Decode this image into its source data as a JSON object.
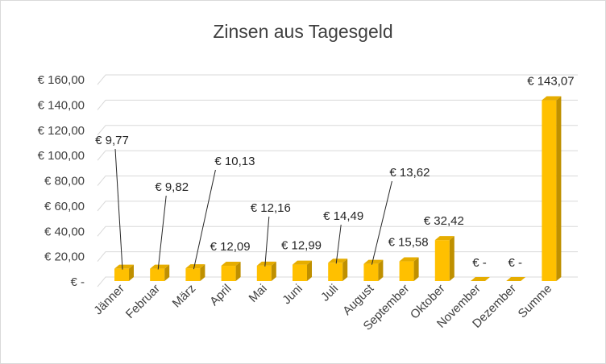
{
  "chart_data": {
    "type": "bar",
    "title": "Zinsen aus Tagesgeld",
    "xlabel": "",
    "ylabel": "",
    "categories": [
      "Jänner",
      "Februar",
      "März",
      "April",
      "Mai",
      "Juni",
      "Juli",
      "August",
      "September",
      "Oktober",
      "November",
      "Dezember",
      "Summe"
    ],
    "values": [
      9.77,
      9.82,
      10.13,
      12.09,
      12.16,
      12.99,
      14.49,
      13.62,
      15.58,
      32.42,
      0,
      0,
      143.07
    ],
    "data_labels": [
      "€ 9,77",
      "€ 9,82",
      "€ 10,13",
      "€ 12,09",
      "€ 12,16",
      "€ 12,99",
      "€ 14,49",
      "€ 13,62",
      "€ 15,58",
      "€ 32,42",
      "€ -",
      "€ -",
      "€ 143,07"
    ],
    "y_ticks": [
      0,
      20,
      40,
      60,
      80,
      100,
      120,
      140,
      160
    ],
    "y_tick_labels": [
      "€ -",
      "€ 20,00",
      "€ 40,00",
      "€ 60,00",
      "€ 80,00",
      "€ 100,00",
      "€ 120,00",
      "€ 140,00",
      "€ 160,00"
    ],
    "ylim": [
      0,
      160
    ],
    "grid": true,
    "legend": "none",
    "bar_style": "3d",
    "colors": {
      "bar_front": "#FFC000",
      "bar_side": "#BF9000",
      "bar_top": "#E6AD00",
      "gridline": "#d9d9d9",
      "text": "#404040"
    }
  }
}
